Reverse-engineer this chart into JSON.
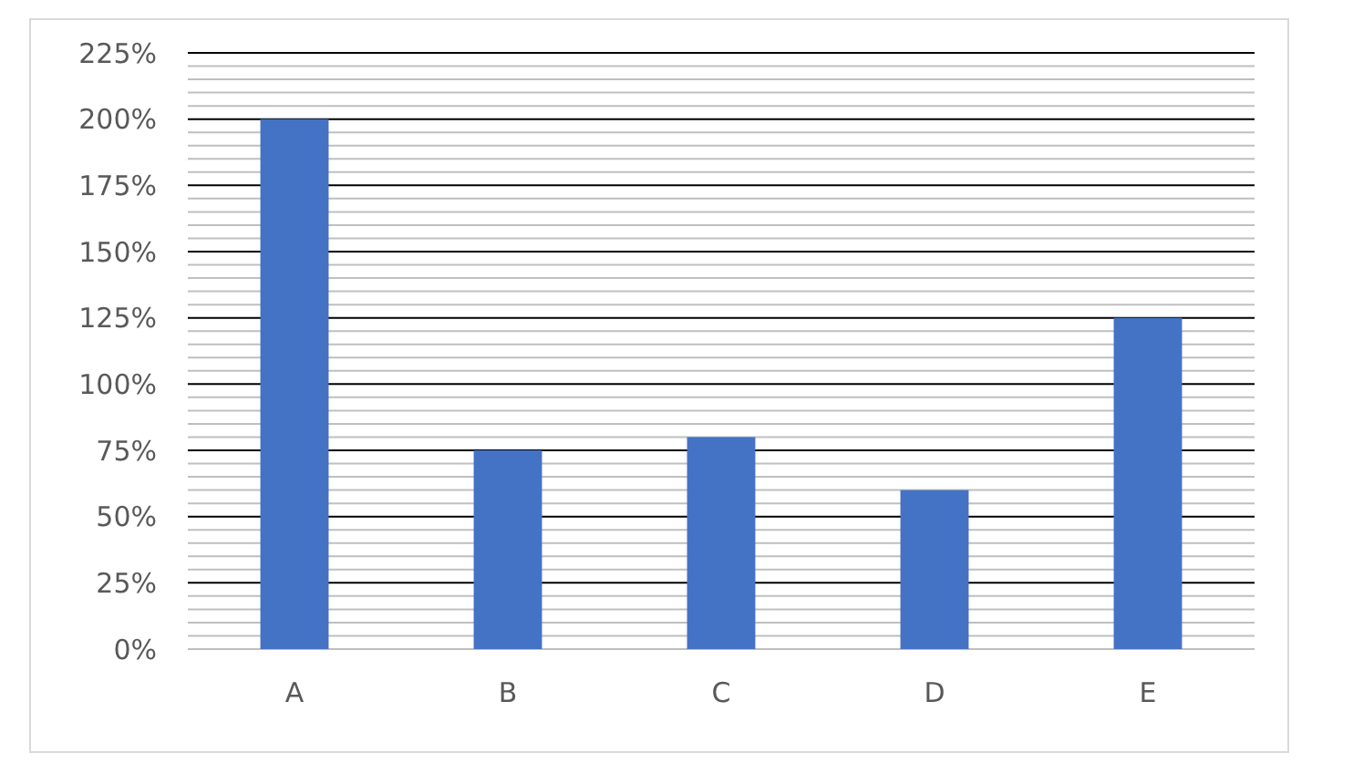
{
  "chart_data": {
    "type": "bar",
    "categories": [
      "A",
      "B",
      "C",
      "D",
      "E"
    ],
    "values": [
      200,
      75,
      80,
      60,
      125
    ],
    "color": "#4472c4",
    "ylim": [
      0,
      225
    ],
    "grid": "y",
    "yticks": [
      {
        "value": 0,
        "label": "0%"
      },
      {
        "value": 5,
        "label": null
      },
      {
        "value": 10,
        "label": null
      },
      {
        "value": 15,
        "label": null
      },
      {
        "value": 20,
        "label": null
      },
      {
        "value": 25,
        "label": "25%"
      },
      {
        "value": 30,
        "label": null
      },
      {
        "value": 35,
        "label": null
      },
      {
        "value": 40,
        "label": null
      },
      {
        "value": 45,
        "label": null
      },
      {
        "value": 50,
        "label": "50%"
      },
      {
        "value": 55,
        "label": null
      },
      {
        "value": 60,
        "label": null
      },
      {
        "value": 65,
        "label": null
      },
      {
        "value": 70,
        "label": null
      },
      {
        "value": 75,
        "label": "75%"
      },
      {
        "value": 80,
        "label": null
      },
      {
        "value": 85,
        "label": null
      },
      {
        "value": 90,
        "label": null
      },
      {
        "value": 95,
        "label": null
      },
      {
        "value": 100,
        "label": "100%"
      },
      {
        "value": 105,
        "label": null
      },
      {
        "value": 110,
        "label": null
      },
      {
        "value": 115,
        "label": null
      },
      {
        "value": 120,
        "label": null
      },
      {
        "value": 125,
        "label": "125%"
      },
      {
        "value": 130,
        "label": null
      },
      {
        "value": 135,
        "label": null
      },
      {
        "value": 140,
        "label": null
      },
      {
        "value": 145,
        "label": null
      },
      {
        "value": 150,
        "label": "150%"
      },
      {
        "value": 155,
        "label": null
      },
      {
        "value": 160,
        "label": null
      },
      {
        "value": 165,
        "label": null
      },
      {
        "value": 170,
        "label": null
      },
      {
        "value": 175,
        "label": "175%"
      },
      {
        "value": 180,
        "label": null
      },
      {
        "value": 185,
        "label": null
      },
      {
        "value": 190,
        "label": null
      },
      {
        "value": 195,
        "label": null
      },
      {
        "value": 200,
        "label": "200%"
      },
      {
        "value": 205,
        "label": null
      },
      {
        "value": 210,
        "label": null
      },
      {
        "value": 215,
        "label": null
      },
      {
        "value": 220,
        "label": null
      },
      {
        "value": 225,
        "label": "225%"
      }
    ]
  }
}
